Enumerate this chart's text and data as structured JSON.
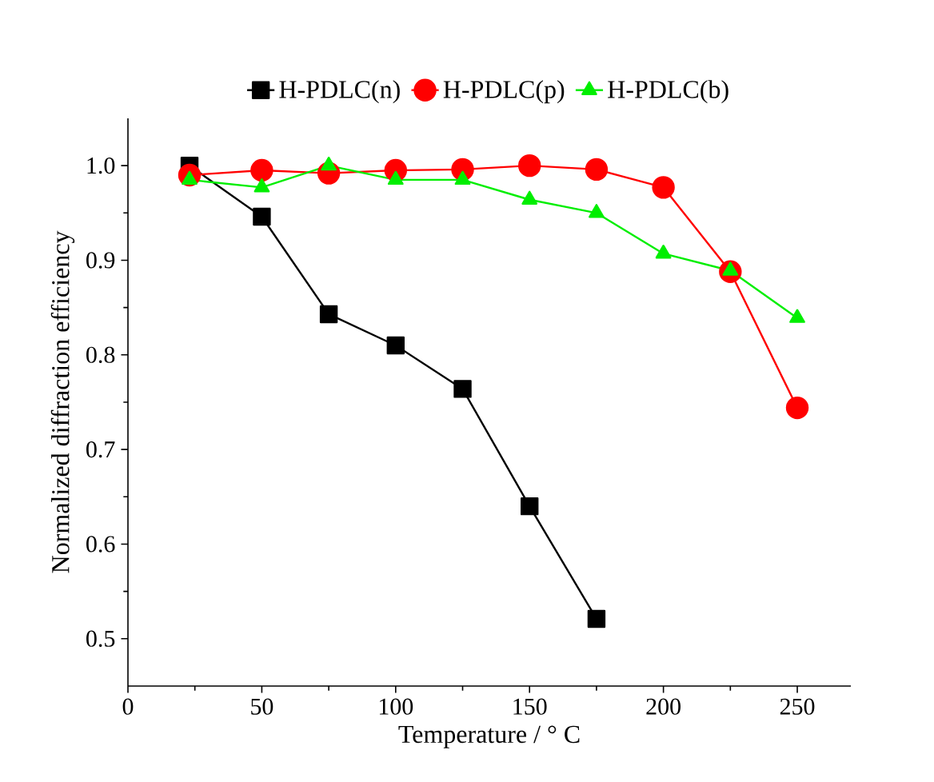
{
  "chart_data": {
    "type": "line",
    "xlabel": "Temperature / ° C",
    "ylabel": "Normalized diffraction efficiency",
    "xlim": [
      0,
      270
    ],
    "ylim": [
      0.45,
      1.05
    ],
    "xticks": [
      0,
      50,
      100,
      150,
      200,
      250
    ],
    "yticks": [
      {
        "value": 0.5,
        "label": "0.5"
      },
      {
        "value": 0.6,
        "label": "0.6"
      },
      {
        "value": 0.7,
        "label": "0.7"
      },
      {
        "value": 0.8,
        "label": "0.8"
      },
      {
        "value": 0.9,
        "label": "0.9"
      },
      {
        "value": 1.0,
        "label": "1.0"
      }
    ],
    "legend": "top",
    "grid": false,
    "line_style": "solid",
    "series": [
      {
        "name": "H-PDLC(n)",
        "color": "#000000",
        "marker": "square",
        "x": [
          23,
          50,
          75,
          100,
          125,
          150,
          175
        ],
        "values": [
          1.0,
          0.946,
          0.843,
          0.81,
          0.764,
          0.64,
          0.521
        ]
      },
      {
        "name": "H-PDLC(p)",
        "color": "#ff0000",
        "marker": "circle",
        "x": [
          23,
          50,
          75,
          100,
          125,
          150,
          175,
          200,
          225,
          250
        ],
        "values": [
          0.99,
          0.995,
          0.992,
          0.995,
          0.996,
          1.0,
          0.996,
          0.977,
          0.888,
          0.744
        ]
      },
      {
        "name": "H-PDLC(b)",
        "color": "#00ee00",
        "marker": "triangle",
        "x": [
          23,
          50,
          75,
          100,
          125,
          150,
          175,
          200,
          225,
          250
        ],
        "values": [
          0.985,
          0.977,
          1.0,
          0.985,
          0.985,
          0.964,
          0.95,
          0.907,
          0.889,
          0.839
        ]
      }
    ]
  }
}
